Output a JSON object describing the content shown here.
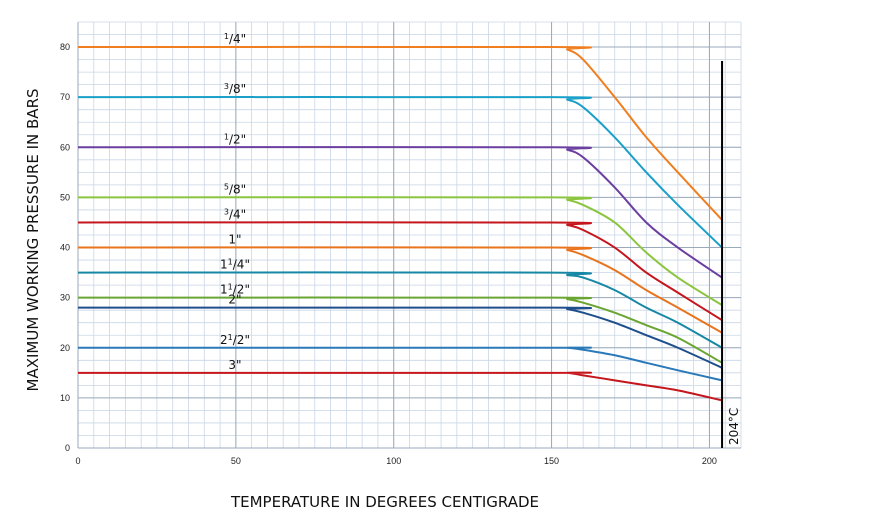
{
  "chart_data": {
    "type": "line",
    "title": "",
    "xlabel": "TEMPERATURE IN DEGREES CENTIGRADE",
    "ylabel": "MAXIMUM WORKING PRESSURE IN BARS",
    "xlim": [
      0,
      210
    ],
    "ylim": [
      0,
      85
    ],
    "x_ticks": [
      0,
      50,
      100,
      150,
      200
    ],
    "y_ticks": [
      0,
      10,
      20,
      30,
      40,
      50,
      60,
      70,
      80
    ],
    "x_minor_step": 5,
    "y_minor_step": 2.5,
    "grid": true,
    "legend": "none",
    "vertical_marker": {
      "x": 204,
      "label": "204°C",
      "color": "#000000"
    },
    "x": [
      0,
      150,
      155,
      160,
      170,
      180,
      190,
      204
    ],
    "series": [
      {
        "name": "1/4\"",
        "label_parts": [
          {
            "text": "1",
            "sup": true
          },
          {
            "text": "/4\""
          }
        ],
        "color": "#F07E1E",
        "values": [
          80,
          80,
          79.5,
          77.5,
          70,
          62,
          55,
          45.5
        ]
      },
      {
        "name": "3/8\"",
        "label_parts": [
          {
            "text": "3",
            "sup": true
          },
          {
            "text": "/8\""
          }
        ],
        "color": "#1AA0C8",
        "values": [
          70,
          70,
          69.5,
          68,
          62,
          55,
          48.5,
          40
        ]
      },
      {
        "name": "1/2\"",
        "label_parts": [
          {
            "text": "1",
            "sup": true
          },
          {
            "text": "/2\""
          }
        ],
        "color": "#6B3FA0",
        "values": [
          60,
          60,
          59.5,
          58,
          52,
          45,
          40,
          34
        ]
      },
      {
        "name": "5/8\"",
        "label_parts": [
          {
            "text": "5",
            "sup": true
          },
          {
            "text": "/8\""
          }
        ],
        "color": "#8BC53F",
        "values": [
          50,
          50,
          49.5,
          48.5,
          45,
          39,
          34,
          28.5
        ]
      },
      {
        "name": "3/4\"",
        "label_parts": [
          {
            "text": "3",
            "sup": true
          },
          {
            "text": "/4\""
          }
        ],
        "color": "#C4161C",
        "values": [
          45,
          45,
          44.5,
          43.5,
          40,
          35,
          31,
          25.5
        ]
      },
      {
        "name": "1\"",
        "label_parts": [
          {
            "text": "1\""
          }
        ],
        "color": "#E8741E",
        "values": [
          40,
          40,
          39.5,
          38.5,
          35.5,
          31.5,
          28,
          23
        ]
      },
      {
        "name": "1 1/4\"",
        "label_parts": [
          {
            "text": "1"
          },
          {
            "text": "1",
            "sup": true
          },
          {
            "text": "/4\""
          }
        ],
        "color": "#1688A5",
        "values": [
          35,
          35,
          34.5,
          34,
          31.5,
          28,
          25,
          20
        ]
      },
      {
        "name": "1 1/2\"",
        "label_parts": [
          {
            "text": "1"
          },
          {
            "text": "1",
            "sup": true
          },
          {
            "text": "/2\""
          }
        ],
        "color": "#6AA531",
        "values": [
          30,
          30,
          29.7,
          29,
          27,
          24.5,
          22,
          17
        ]
      },
      {
        "name": "2\"",
        "label_parts": [
          {
            "text": "2\""
          }
        ],
        "color": "#1F4E8C",
        "values": [
          28,
          28,
          27.7,
          27,
          25,
          22.5,
          20,
          16
        ]
      },
      {
        "name": "2 1/2\"",
        "label_parts": [
          {
            "text": "2"
          },
          {
            "text": "1",
            "sup": true
          },
          {
            "text": "/2\""
          }
        ],
        "color": "#2A79B8",
        "values": [
          20,
          20,
          20,
          19.6,
          18.5,
          17,
          15.5,
          13.5
        ]
      },
      {
        "name": "3\"",
        "label_parts": [
          {
            "text": "3\""
          }
        ],
        "color": "#C4161C",
        "values": [
          15,
          15,
          15,
          14.5,
          13.5,
          12.5,
          11.5,
          9.5
        ]
      }
    ]
  }
}
